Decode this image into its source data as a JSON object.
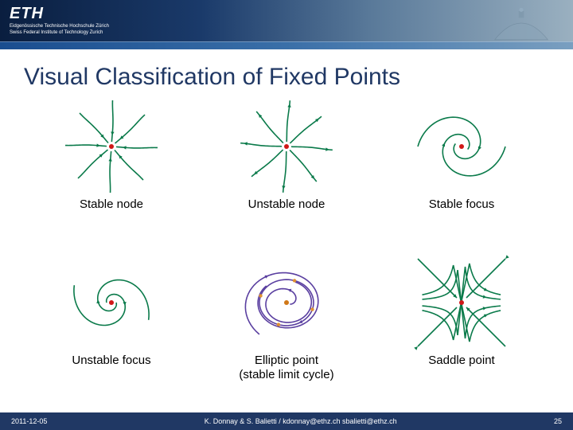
{
  "header": {
    "logo_main": "ETH",
    "logo_sub1": "Eidgenössische Technische Hochschule Zürich",
    "logo_sub2": "Swiss Federal Institute of Technology Zurich"
  },
  "title": "Visual Classification of Fixed Points",
  "portraits": [
    {
      "type": "stable_node",
      "label": "Stable node",
      "stroke": "#0a7a4a",
      "fp": "#d01818"
    },
    {
      "type": "unstable_node",
      "label": "Unstable node",
      "stroke": "#0a7a4a",
      "fp": "#d01818"
    },
    {
      "type": "stable_focus",
      "label": "Stable focus",
      "stroke": "#0a7a4a",
      "fp": "#d01818"
    },
    {
      "type": "unstable_focus",
      "label": "Unstable focus",
      "stroke": "#0a7a4a",
      "fp": "#d01818"
    },
    {
      "type": "limit_cycle",
      "label": "Elliptic point\n(stable limit cycle)",
      "stroke": "#5a3fa0",
      "fp": "#d07818"
    },
    {
      "type": "saddle",
      "label": "Saddle point",
      "stroke": "#0a7a4a",
      "fp": "#d01818"
    }
  ],
  "style": {
    "title_color": "#203864",
    "footer_bg": "#203864",
    "footer_fg": "#ffffff",
    "caption_color": "#000000",
    "caption_fontsize": 15,
    "title_fontsize": 30,
    "stroke_width": 1.6,
    "arrow_size": 5,
    "background": "#ffffff"
  },
  "footer": {
    "date": "2011-12-05",
    "authors": "K. Donnay & S. Balietti  /  kdonnay@ethz.ch   sbalietti@ethz.ch",
    "page": "25"
  }
}
